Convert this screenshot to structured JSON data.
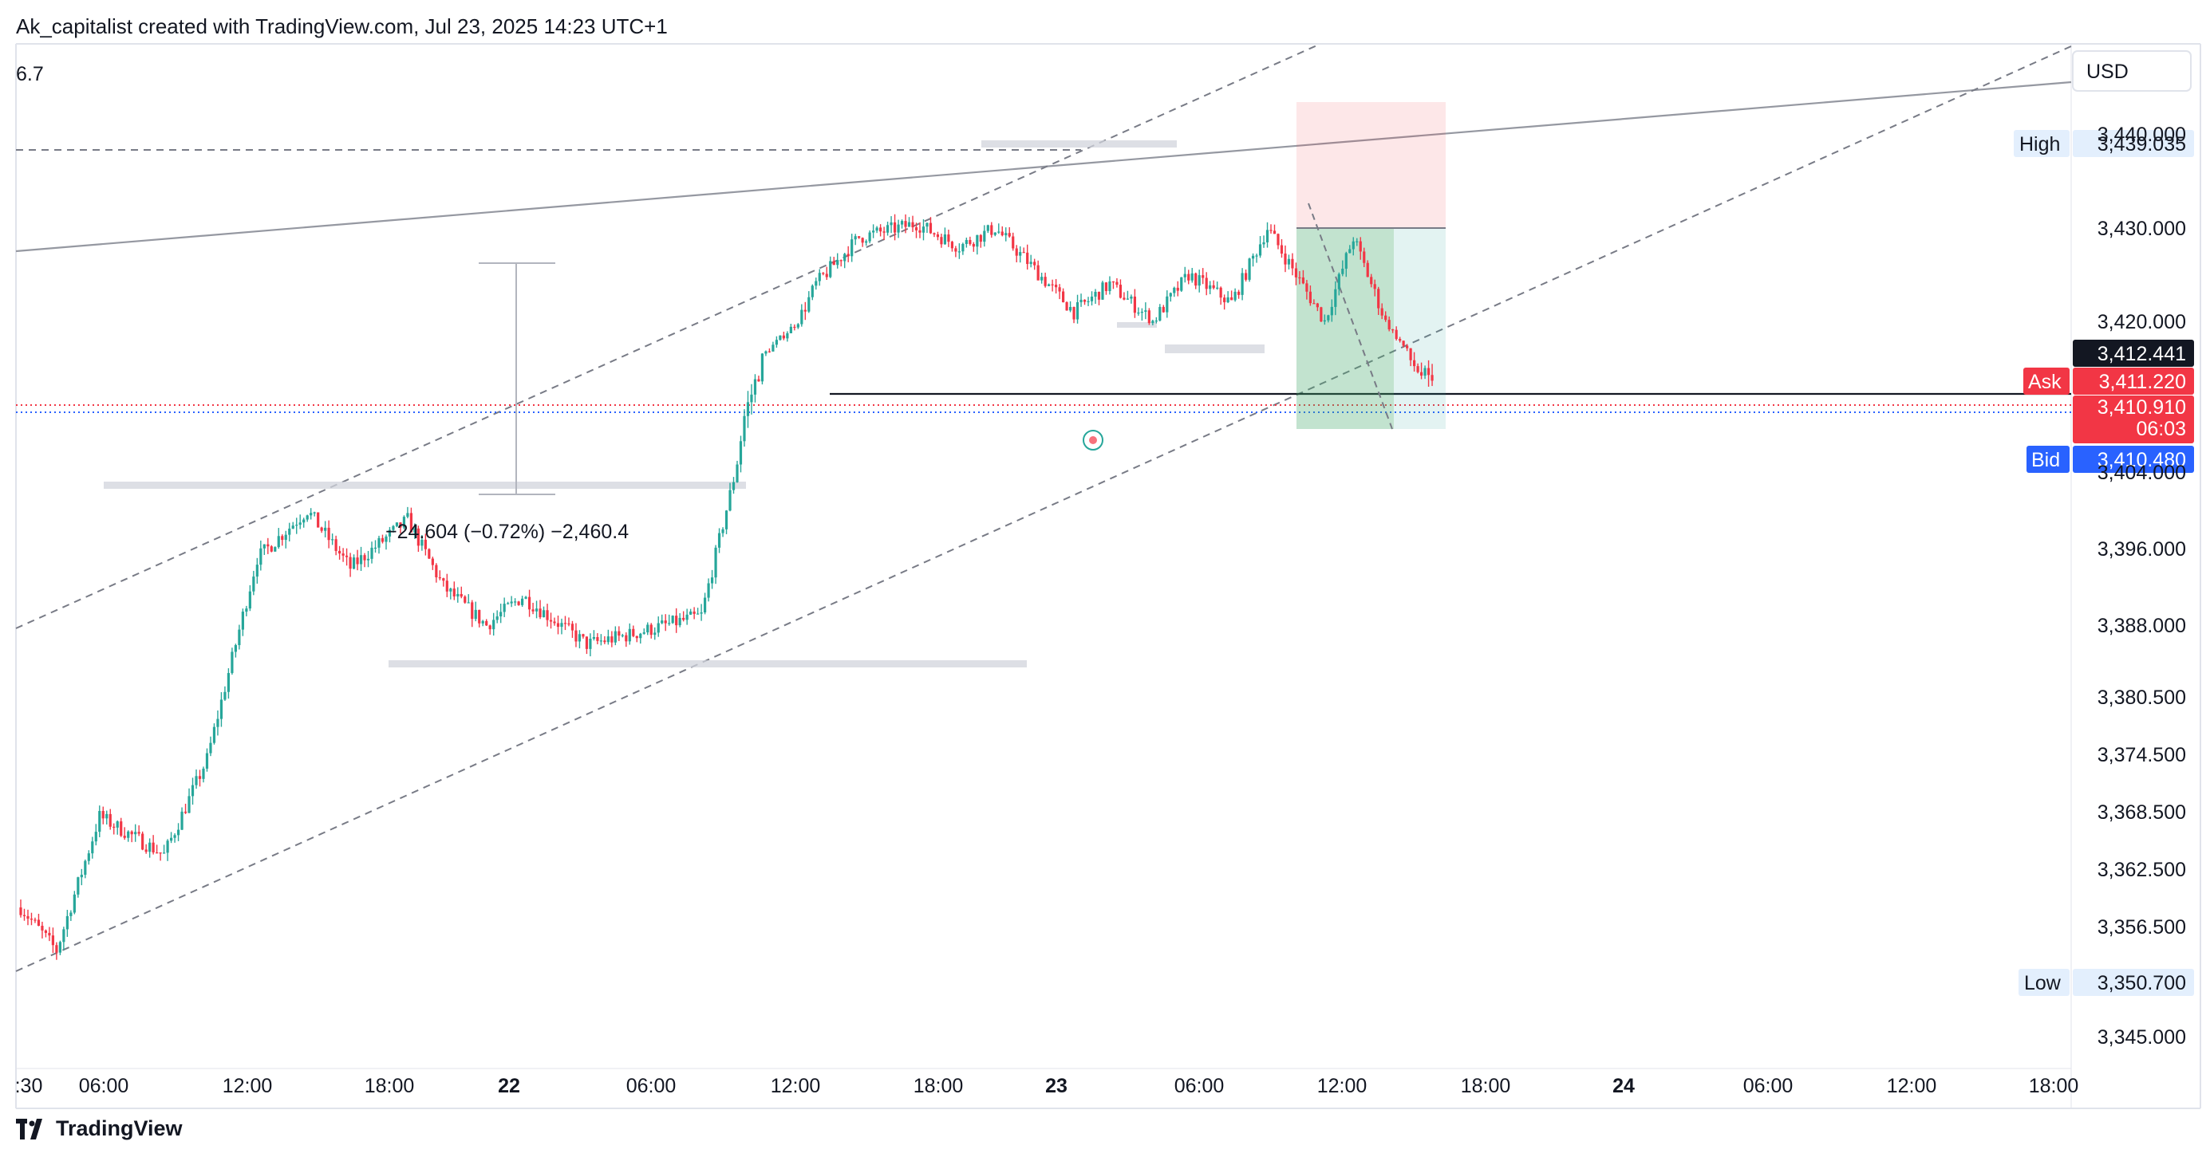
{
  "header": {
    "caption": "Ak_capitalist created with TradingView.com, Jul 23, 2025 14:23 UTC+1"
  },
  "top_left_value": "6.7",
  "currency": "USD",
  "measure_label": "−24.604 (−0.72%) −2,460.4",
  "brand": {
    "name": "TradingView"
  },
  "colors": {
    "up": "#26a69a",
    "down": "#f23645",
    "ask": "#f23645",
    "bid": "#2962ff",
    "last": "#131722"
  },
  "chart_data": {
    "type": "candlestick",
    "symbol_currency": "USD",
    "y_axis": {
      "range": [
        3341.0,
        3449.0
      ],
      "ticks": [
        "3,440.000",
        "3,430.000",
        "3,420.000",
        "3,412.441",
        "3,404.000",
        "3,396.000",
        "3,388.000",
        "3,380.500",
        "3,374.500",
        "3,368.500",
        "3,362.500",
        "3,356.500",
        "3,350.700",
        "3,345.000"
      ],
      "tick_values": [
        3440.0,
        3430.0,
        3420.0,
        3412.441,
        3404.0,
        3396.0,
        3388.0,
        3380.5,
        3374.5,
        3368.5,
        3362.5,
        3356.5,
        3350.7,
        3345.0
      ],
      "scale": "non-linear (as rendered)"
    },
    "x_axis": {
      "ticks": [
        ":30",
        "06:00",
        "12:00",
        "18:00",
        "22",
        "06:00",
        "12:00",
        "18:00",
        "23",
        "06:00",
        "12:00",
        "18:00",
        "24",
        "06:00",
        "12:00",
        "18:00"
      ],
      "bold_ticks": [
        "22",
        "23",
        "24"
      ]
    },
    "price_labels": {
      "high": {
        "label": "High",
        "value": "3,439.035"
      },
      "last": {
        "value": "3,412.441"
      },
      "ask": {
        "label": "Ask",
        "value": "3,411.220"
      },
      "current": {
        "value": "3,410.910",
        "countdown": "06:03"
      },
      "bid": {
        "label": "Bid",
        "value": "3,410.480"
      },
      "low": {
        "label": "Low",
        "value": "3,350.700"
      }
    },
    "trend_path": [
      [
        0,
        3358.5
      ],
      [
        10,
        3354.0
      ],
      [
        22,
        3368.0
      ],
      [
        40,
        3364.0
      ],
      [
        52,
        3374.0
      ],
      [
        66,
        3395.0
      ],
      [
        80,
        3400.0
      ],
      [
        92,
        3394.0
      ],
      [
        108,
        3399.0
      ],
      [
        118,
        3392.0
      ],
      [
        130,
        3388.0
      ],
      [
        140,
        3391.0
      ],
      [
        158,
        3386.0
      ],
      [
        170,
        3387.0
      ],
      [
        190,
        3389.0
      ],
      [
        202,
        3408.0
      ],
      [
        212,
        3416.0
      ],
      [
        222,
        3424.0
      ],
      [
        234,
        3429.0
      ],
      [
        250,
        3430.5
      ],
      [
        262,
        3428.0
      ],
      [
        272,
        3430.0
      ],
      [
        282,
        3426.0
      ],
      [
        294,
        3421.0
      ],
      [
        304,
        3424.0
      ],
      [
        316,
        3420.0
      ],
      [
        326,
        3425.0
      ],
      [
        338,
        3422.0
      ],
      [
        348,
        3430.0
      ],
      [
        356,
        3425.0
      ],
      [
        364,
        3420.0
      ],
      [
        372,
        3429.0
      ],
      [
        380,
        3421.0
      ],
      [
        388,
        3412.0
      ],
      [
        394,
        3410.0
      ]
    ],
    "candle_count": 395,
    "measure": {
      "change": "−24.604",
      "percent": "−0.72%",
      "points": "−2,460.4"
    },
    "position_tool": {
      "entry": 3430.0,
      "stop": 3440.5,
      "target": 3409.5,
      "side": "short"
    }
  }
}
